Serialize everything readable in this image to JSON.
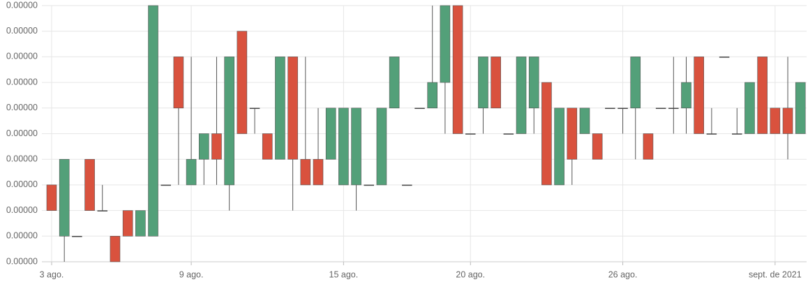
{
  "chart_data": {
    "type": "candlestick",
    "categories": [
      null,
      null,
      null,
      null,
      null,
      null,
      null,
      null,
      null,
      null,
      null,
      null,
      null,
      null,
      null,
      null,
      null,
      null,
      null,
      null,
      null,
      null,
      null,
      null,
      null,
      null,
      null,
      null,
      null,
      null,
      null,
      null,
      null,
      null,
      null,
      null,
      null,
      null,
      null,
      null,
      null,
      null,
      null,
      null,
      null,
      null,
      null,
      null,
      null,
      null,
      null,
      null,
      null,
      null,
      null,
      null,
      null,
      null,
      null,
      null
    ],
    "open": [
      3e-07,
      1e-07,
      1e-07,
      4e-07,
      2e-07,
      1e-07,
      2e-07,
      1e-07,
      1e-07,
      3e-07,
      8e-07,
      3e-07,
      4e-07,
      5e-07,
      3e-07,
      9e-07,
      6e-07,
      5e-07,
      4e-07,
      8e-07,
      4e-07,
      4e-07,
      4e-07,
      3e-07,
      3e-07,
      3e-07,
      3e-07,
      6e-07,
      3e-07,
      6e-07,
      6e-07,
      7e-07,
      1e-06,
      5e-07,
      6e-07,
      8e-07,
      5e-07,
      5e-07,
      6e-07,
      7e-07,
      3e-07,
      6e-07,
      5e-07,
      5e-07,
      6e-07,
      6e-07,
      6e-07,
      5e-07,
      6e-07,
      6e-07,
      6e-07,
      8e-07,
      5e-07,
      8e-07,
      5e-07,
      5e-07,
      8e-07,
      6e-07,
      6e-07,
      5e-07
    ],
    "high": [
      3e-07,
      4e-07,
      1e-07,
      4e-07,
      3e-07,
      1e-07,
      2e-07,
      2e-07,
      1e-06,
      3e-07,
      8e-07,
      8e-07,
      5e-07,
      8e-07,
      8e-07,
      9e-07,
      6e-07,
      5e-07,
      8e-07,
      8e-07,
      8e-07,
      6e-07,
      6e-07,
      6e-07,
      6e-07,
      3e-07,
      6e-07,
      8e-07,
      3e-07,
      6e-07,
      1e-06,
      1e-06,
      1e-06,
      5e-07,
      8e-07,
      8e-07,
      5e-07,
      8e-07,
      8e-07,
      7e-07,
      6e-07,
      6e-07,
      6e-07,
      5e-07,
      6e-07,
      6e-07,
      8e-07,
      5e-07,
      6e-07,
      8e-07,
      8e-07,
      8e-07,
      6e-07,
      8e-07,
      6e-07,
      7e-07,
      8e-07,
      6e-07,
      8e-07,
      7e-07
    ],
    "low": [
      2e-07,
      0,
      1e-07,
      2e-07,
      2e-07,
      0,
      1e-07,
      1e-07,
      1e-07,
      3e-07,
      3e-07,
      3e-07,
      3e-07,
      3e-07,
      2e-07,
      5e-07,
      5e-07,
      4e-07,
      4e-07,
      2e-07,
      3e-07,
      3e-07,
      4e-07,
      3e-07,
      2e-07,
      3e-07,
      3e-07,
      6e-07,
      3e-07,
      6e-07,
      6e-07,
      5e-07,
      5e-07,
      5e-07,
      5e-07,
      6e-07,
      5e-07,
      5e-07,
      5e-07,
      3e-07,
      3e-07,
      3e-07,
      5e-07,
      4e-07,
      6e-07,
      5e-07,
      4e-07,
      4e-07,
      6e-07,
      5e-07,
      5e-07,
      5e-07,
      5e-07,
      8e-07,
      5e-07,
      5e-07,
      5e-07,
      5e-07,
      4e-07,
      5e-07
    ],
    "close": [
      2e-07,
      4e-07,
      1e-07,
      2e-07,
      2e-07,
      0,
      1e-07,
      2e-07,
      1e-06,
      3e-07,
      6e-07,
      4e-07,
      5e-07,
      4e-07,
      8e-07,
      5e-07,
      6e-07,
      4e-07,
      8e-07,
      4e-07,
      3e-07,
      3e-07,
      6e-07,
      6e-07,
      6e-07,
      3e-07,
      6e-07,
      8e-07,
      3e-07,
      6e-07,
      7e-07,
      1e-06,
      5e-07,
      5e-07,
      8e-07,
      6e-07,
      5e-07,
      8e-07,
      8e-07,
      3e-07,
      6e-07,
      4e-07,
      6e-07,
      4e-07,
      6e-07,
      6e-07,
      8e-07,
      4e-07,
      6e-07,
      6e-07,
      7e-07,
      5e-07,
      5e-07,
      8e-07,
      5e-07,
      7e-07,
      5e-07,
      5e-07,
      5e-07,
      7e-07
    ],
    "up_color": "#53a079",
    "down_color": "#d9523e",
    "ylim": [
      0,
      1e-06
    ],
    "yticks": [
      {
        "value": 0,
        "label": "0.00000"
      },
      {
        "value": 1e-07,
        "label": "0.00000"
      },
      {
        "value": 2e-07,
        "label": "0.00000"
      },
      {
        "value": 3e-07,
        "label": "0.00000"
      },
      {
        "value": 4e-07,
        "label": "0.00000"
      },
      {
        "value": 5e-07,
        "label": "0.00000"
      },
      {
        "value": 6e-07,
        "label": "0.00000"
      },
      {
        "value": 7e-07,
        "label": "0.00000"
      },
      {
        "value": 8e-07,
        "label": "0.00000"
      },
      {
        "value": 9e-07,
        "label": "0.00000"
      },
      {
        "value": 1e-06,
        "label": "0.00000"
      }
    ],
    "xticks": [
      {
        "value": 0,
        "label": "3 ago."
      },
      {
        "value": 11,
        "label": "9 ago."
      },
      {
        "value": 23,
        "label": "15 ago."
      },
      {
        "value": 33,
        "label": "20 ago."
      },
      {
        "value": 45,
        "label": "26 ago."
      },
      {
        "value": 57,
        "label": "sept. de 2021"
      }
    ],
    "grid": true
  }
}
